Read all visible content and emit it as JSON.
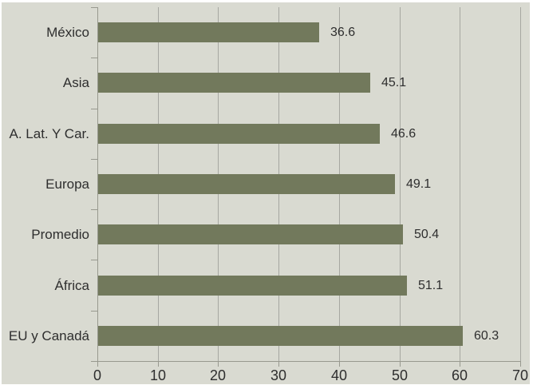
{
  "chart_data": {
    "type": "bar",
    "orientation": "horizontal",
    "title": "",
    "xlabel": "",
    "ylabel": "",
    "categories": [
      "México",
      "Asia",
      "A. Lat. Y Car.",
      "Europa",
      "Promedio",
      "África",
      "EU y Canadá"
    ],
    "values": [
      36.6,
      45.1,
      46.6,
      49.1,
      50.4,
      51.1,
      60.3
    ],
    "value_labels": [
      "36.6",
      "45.1",
      "46.6",
      "49.1",
      "50.4",
      "51.1",
      "60.3"
    ],
    "xlim": [
      0,
      70
    ],
    "x_ticks": [
      0,
      10,
      20,
      30,
      40,
      50,
      60,
      70
    ],
    "grid": "vertical-gridlines",
    "legend": "none",
    "colors": {
      "bar": "#72795c",
      "background": "#d9dad1",
      "outer_margin": "#ffffff",
      "gridline": "#a6a7a1",
      "axis": "#98998f",
      "text": "#2e2e2e"
    }
  }
}
